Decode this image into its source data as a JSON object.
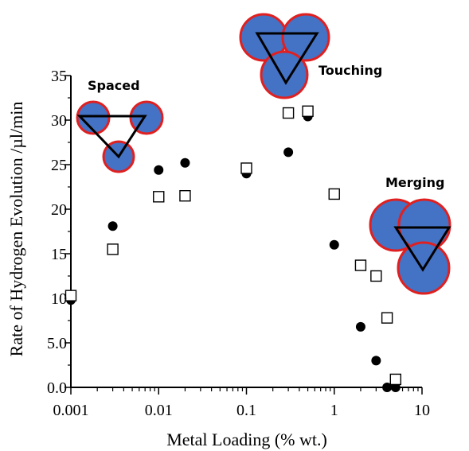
{
  "chart_data": {
    "type": "scatter",
    "title": "",
    "xlabel": "Metal Loading (% wt.)",
    "ylabel": "Rate of Hydrogen Evolution /µl/min",
    "xscale": "log",
    "xlim": [
      0.001,
      10
    ],
    "ylim": [
      0,
      35
    ],
    "x_ticks": [
      0.001,
      0.01,
      0.1,
      1,
      10
    ],
    "x_tick_labels": [
      "0.001",
      "0.01",
      "0.1",
      "1",
      "10"
    ],
    "y_ticks": [
      0,
      5,
      10,
      15,
      20,
      25,
      30,
      35
    ],
    "y_tick_labels": [
      "0.0",
      "5.0",
      "10",
      "15",
      "20",
      "25",
      "30",
      "35"
    ],
    "grid": false,
    "legend": "none",
    "series": [
      {
        "marker": "filled-circle",
        "color": "#000000",
        "points": [
          {
            "x": 0.001,
            "y": 9.8
          },
          {
            "x": 0.003,
            "y": 18.1
          },
          {
            "x": 0.01,
            "y": 24.4
          },
          {
            "x": 0.02,
            "y": 25.2
          },
          {
            "x": 0.1,
            "y": 24.0
          },
          {
            "x": 0.3,
            "y": 26.4
          },
          {
            "x": 0.5,
            "y": 30.4
          },
          {
            "x": 1,
            "y": 16.0
          },
          {
            "x": 2,
            "y": 6.8
          },
          {
            "x": 3,
            "y": 3.0
          },
          {
            "x": 4,
            "y": 0
          },
          {
            "x": 5,
            "y": 0
          }
        ]
      },
      {
        "marker": "open-square",
        "color": "#000000",
        "points": [
          {
            "x": 0.001,
            "y": 10.3
          },
          {
            "x": 0.003,
            "y": 15.5
          },
          {
            "x": 0.01,
            "y": 21.4
          },
          {
            "x": 0.02,
            "y": 21.5
          },
          {
            "x": 0.1,
            "y": 24.6
          },
          {
            "x": 0.3,
            "y": 30.8
          },
          {
            "x": 0.5,
            "y": 31.0
          },
          {
            "x": 1,
            "y": 21.7
          },
          {
            "x": 2,
            "y": 13.7
          },
          {
            "x": 3,
            "y": 12.5
          },
          {
            "x": 4,
            "y": 7.8
          },
          {
            "x": 5,
            "y": 0.9
          }
        ]
      }
    ],
    "annotations": [
      {
        "label": "Spaced",
        "arrangement": "spaced"
      },
      {
        "label": "Touching",
        "arrangement": "touching"
      },
      {
        "label": "Merging",
        "arrangement": "merging"
      }
    ],
    "colors": {
      "circle_fill": "#4472C4",
      "circle_stroke": "#E02020",
      "marker": "#000000"
    }
  }
}
